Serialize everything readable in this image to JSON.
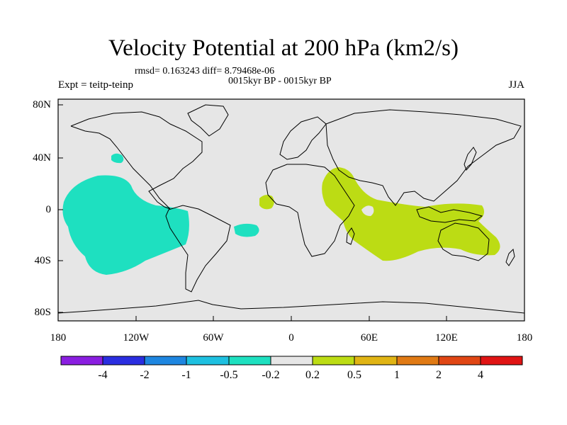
{
  "title": "Velocity Potential at 200 hPa (km2/s)",
  "stats": "rmsd= 0.163243 diff= 8.79468e-06",
  "subtitle": "0015kyr BP - 0015kyr BP",
  "experiment": "Expt = teitp-teinp",
  "season": "JJA",
  "y_ticks": [
    "80N",
    "40N",
    "0",
    "40S",
    "80S"
  ],
  "x_ticks": [
    "180",
    "120W",
    "60W",
    "0",
    "60E",
    "120E",
    "180"
  ],
  "colorbar": {
    "colors": [
      "#8a1ee0",
      "#2a2ee0",
      "#1e86e0",
      "#1ec0e0",
      "#1ee0c0",
      "#e6e6e6",
      "#bcdc14",
      "#e0b414",
      "#e07a14",
      "#e04614",
      "#e01414"
    ],
    "labels": [
      "-4",
      "-2",
      "-1",
      "-0.5",
      "-0.2",
      "0.2",
      "0.5",
      "1",
      "2",
      "4"
    ]
  },
  "colors": {
    "background": "#e6e6e6",
    "negative_fill": "#1ee0c0",
    "positive_fill": "#bcdc14",
    "coast": "#000000"
  }
}
